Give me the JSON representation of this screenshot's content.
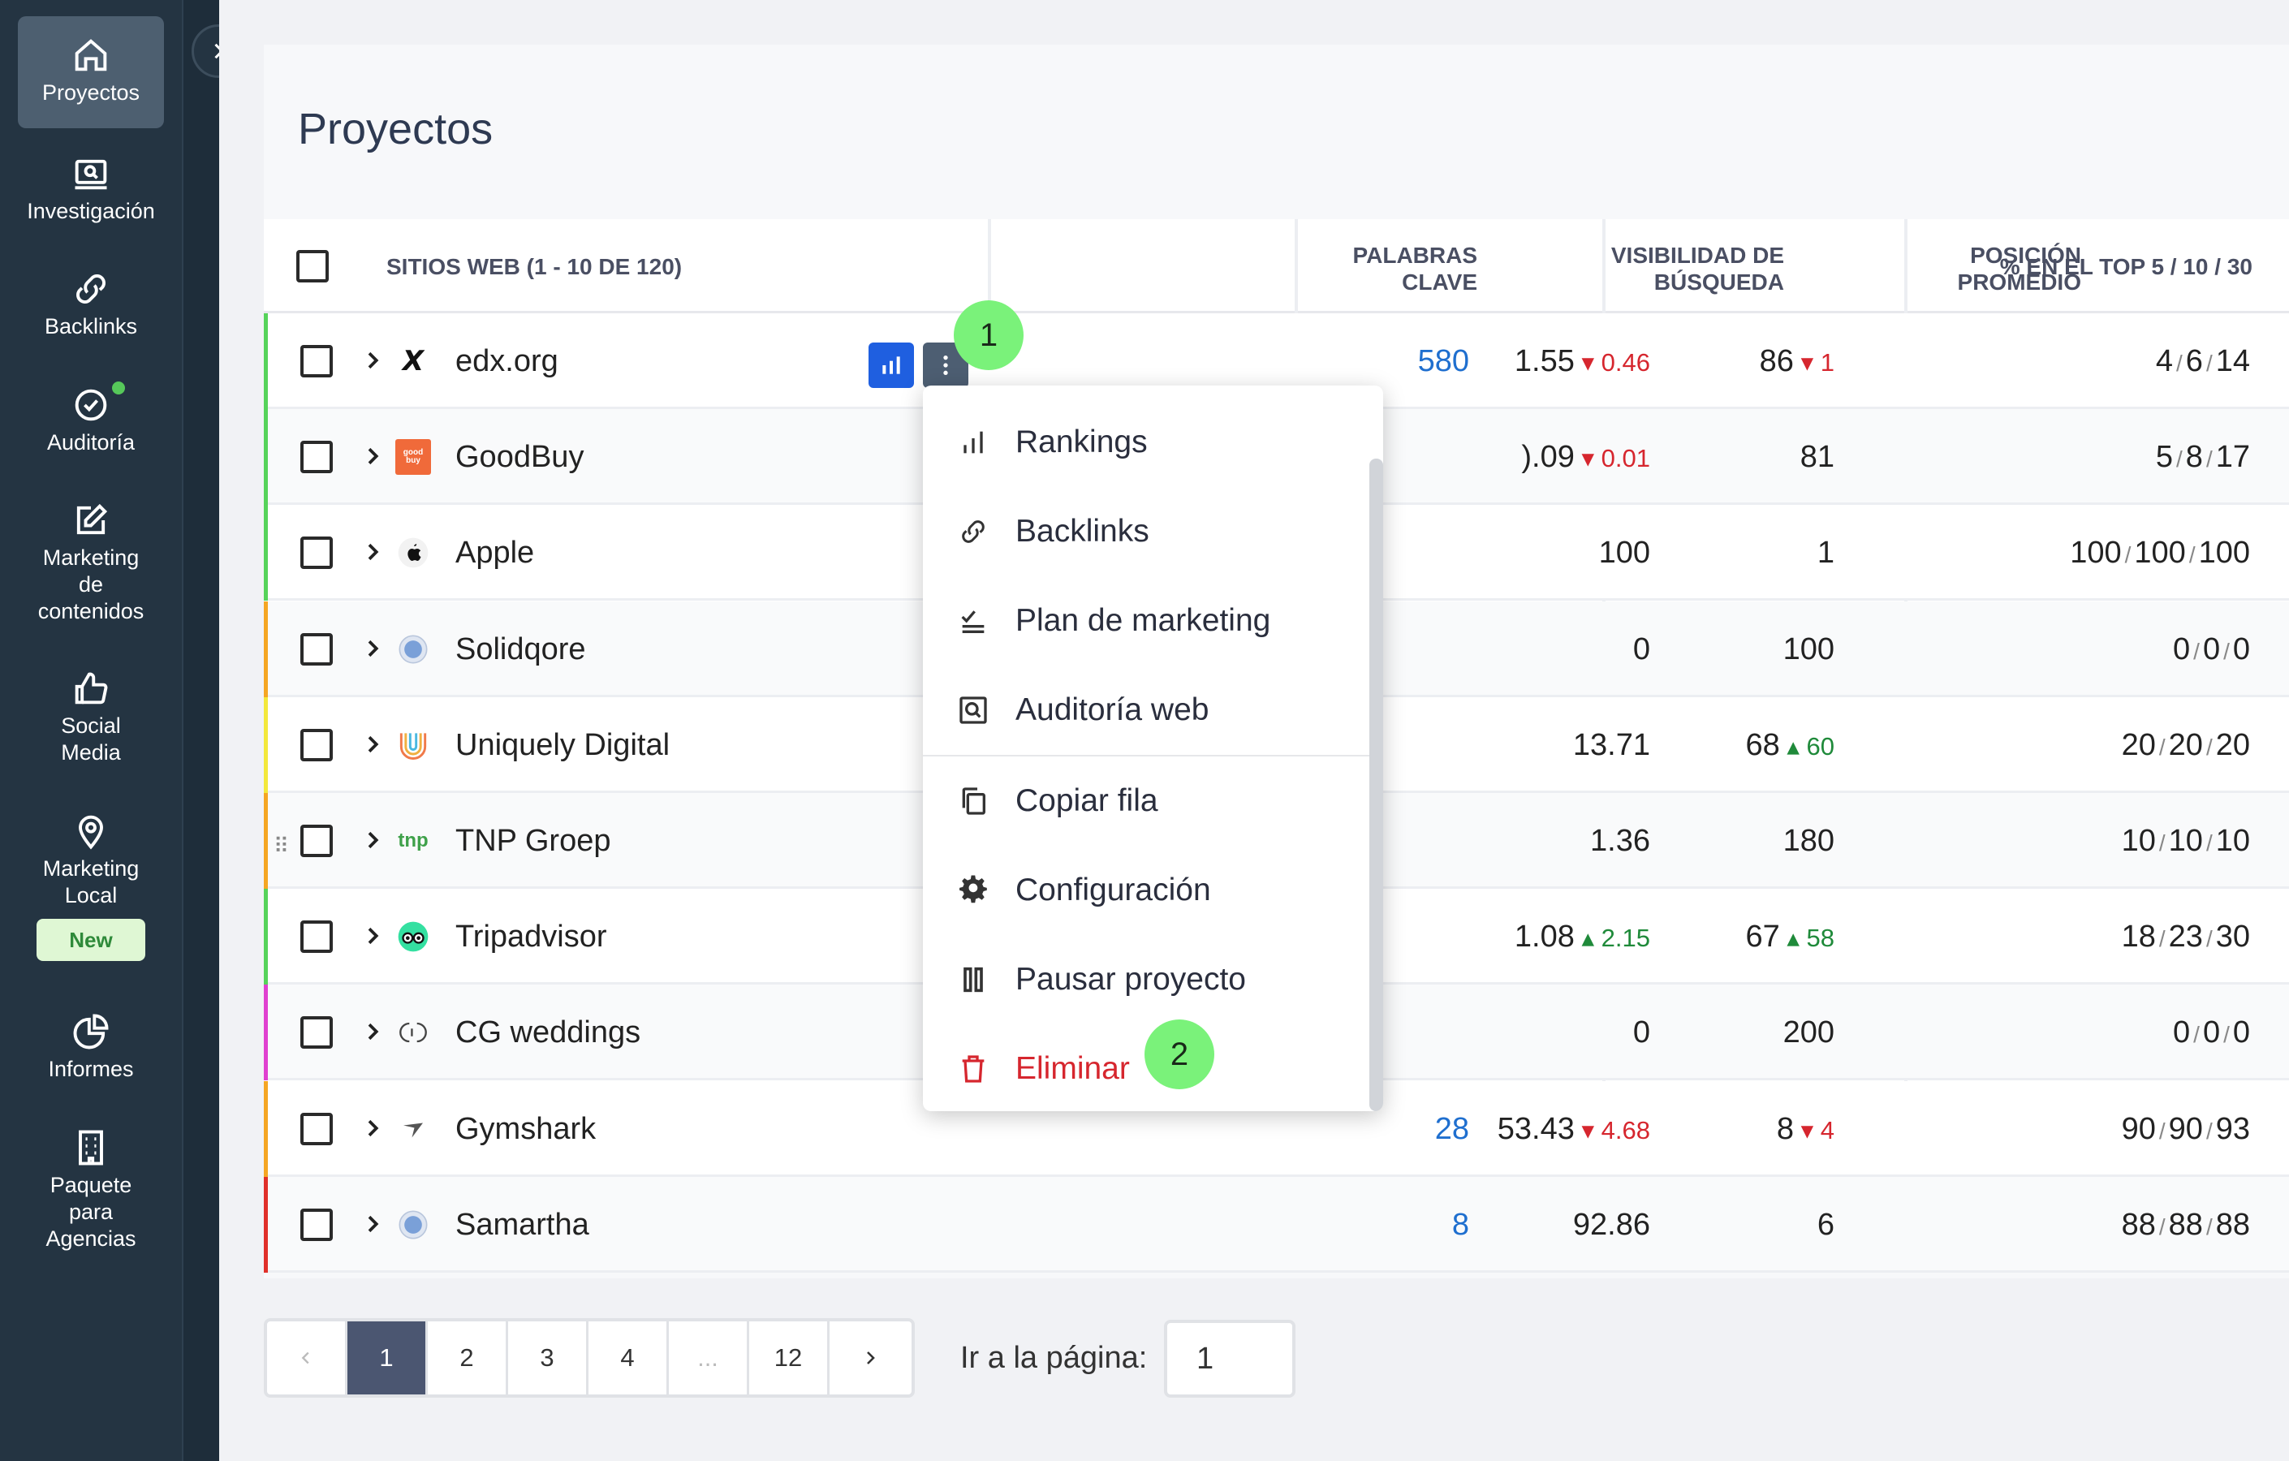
{
  "sidebar": {
    "items": [
      {
        "label": "Proyectos",
        "icon": "home-icon",
        "active": true
      },
      {
        "label": "Investigación",
        "icon": "research-icon"
      },
      {
        "label": "Backlinks",
        "icon": "link-icon"
      },
      {
        "label": "Auditoría",
        "icon": "check-circle-icon"
      },
      {
        "label_lines": [
          "Marketing",
          "de",
          "contenidos"
        ],
        "icon": "edit-icon"
      },
      {
        "label_lines": [
          "Social",
          "Media"
        ],
        "icon": "thumbs-up-icon"
      },
      {
        "label_lines": [
          "Marketing",
          "Local"
        ],
        "icon": "map-pin-icon",
        "badge": "New"
      },
      {
        "label": "Informes",
        "icon": "pie-chart-icon"
      },
      {
        "label_lines": [
          "Paquete",
          "para",
          "Agencias"
        ],
        "icon": "building-icon"
      }
    ]
  },
  "page": {
    "title": "Proyectos"
  },
  "table": {
    "headers": {
      "sites": "SITIOS WEB (1 - 10 de 120)",
      "keywords_1": "PALABRAS",
      "keywords_2": "CLAVE",
      "visibility_1": "VISIBILIDAD DE",
      "visibility_2": "BÚSQUEDA",
      "position_1": "POSICIÓN",
      "position_2": "PROMEDIO",
      "top": "% EN EL TOP 5 / 10 / 30"
    },
    "rows": [
      {
        "name": "edx.org",
        "keywords": "580",
        "visibility": "1.55",
        "vis_change": "0.46",
        "position": "86",
        "pos_change": "1",
        "top": [
          "4",
          "6",
          "14"
        ]
      },
      {
        "name": "GoodBuy",
        "keywords": "",
        "visibility": ").09",
        "vis_change": "0.01",
        "position": "81",
        "pos_change": "",
        "top": [
          "5",
          "8",
          "17"
        ]
      },
      {
        "name": "Apple",
        "keywords": "",
        "visibility": "100",
        "vis_change": "",
        "position": "1",
        "pos_change": "",
        "top": [
          "100",
          "100",
          "100"
        ]
      },
      {
        "name": "Solidqore",
        "keywords": "",
        "visibility": "0",
        "vis_change": "",
        "position": "100",
        "pos_change": "",
        "top": [
          "0",
          "0",
          "0"
        ]
      },
      {
        "name": "Uniquely Digital",
        "keywords": "",
        "visibility": "13.71",
        "vis_change": "",
        "position": "68",
        "pos_change": "60",
        "top": [
          "20",
          "20",
          "20"
        ]
      },
      {
        "name": "TNP Groep",
        "keywords": "",
        "visibility": "1.36",
        "vis_change": "",
        "position": "180",
        "pos_change": "",
        "top": [
          "10",
          "10",
          "10"
        ]
      },
      {
        "name": "Tripadvisor",
        "keywords": "",
        "visibility": "1.08",
        "vis_change": "2.15",
        "position": "67",
        "pos_change": "58",
        "top": [
          "18",
          "23",
          "30"
        ]
      },
      {
        "name": "CG weddings",
        "keywords": "",
        "visibility": "0",
        "vis_change": "",
        "position": "200",
        "pos_change": "",
        "top": [
          "0",
          "0",
          "0"
        ]
      },
      {
        "name": "Gymshark",
        "keywords": "28",
        "visibility": "53.43",
        "vis_change": "4.68",
        "position": "8",
        "pos_change": "4",
        "top": [
          "90",
          "90",
          "93"
        ]
      },
      {
        "name": "Samartha",
        "keywords": "8",
        "visibility": "92.86",
        "vis_change": "",
        "position": "6",
        "pos_change": "",
        "top": [
          "88",
          "88",
          "88"
        ]
      }
    ],
    "favicons": {
      "edx": "X",
      "goodbuy": "good buy",
      "tnp": "tnp"
    }
  },
  "menu": {
    "items": [
      {
        "label": "Rankings",
        "icon": "bar-chart-icon"
      },
      {
        "label": "Backlinks",
        "icon": "link-icon"
      },
      {
        "label": "Plan de marketing",
        "icon": "checklist-icon"
      },
      {
        "label": "Auditoría web",
        "icon": "audit-icon"
      },
      {
        "label": "Copiar fila",
        "icon": "copy-icon"
      },
      {
        "label": "Configuración",
        "icon": "gear-icon"
      },
      {
        "label": "Pausar proyecto",
        "icon": "pause-icon"
      },
      {
        "label": "Eliminar",
        "icon": "trash-icon",
        "danger": true
      }
    ]
  },
  "steps": {
    "one": "1",
    "two": "2"
  },
  "pagination": {
    "pages": [
      "1",
      "2",
      "3",
      "4",
      "...",
      "12"
    ],
    "current": "1",
    "goto_label": "Ir a la página:",
    "goto_value": "1"
  },
  "colors": {
    "sidebar": "#243442",
    "accent": "#1f5fe0",
    "link": "#1f6fcf",
    "negative": "#d6262e",
    "positive": "#1f8a3a",
    "step_badge": "#7af27a",
    "row_bars": [
      "#56d35a",
      "#56d35a",
      "#56d35a",
      "#f5a623",
      "#f3e83b",
      "#f5a623",
      "#56d35a",
      "#e040d0",
      "#f5a623",
      "#e0302a"
    ]
  }
}
